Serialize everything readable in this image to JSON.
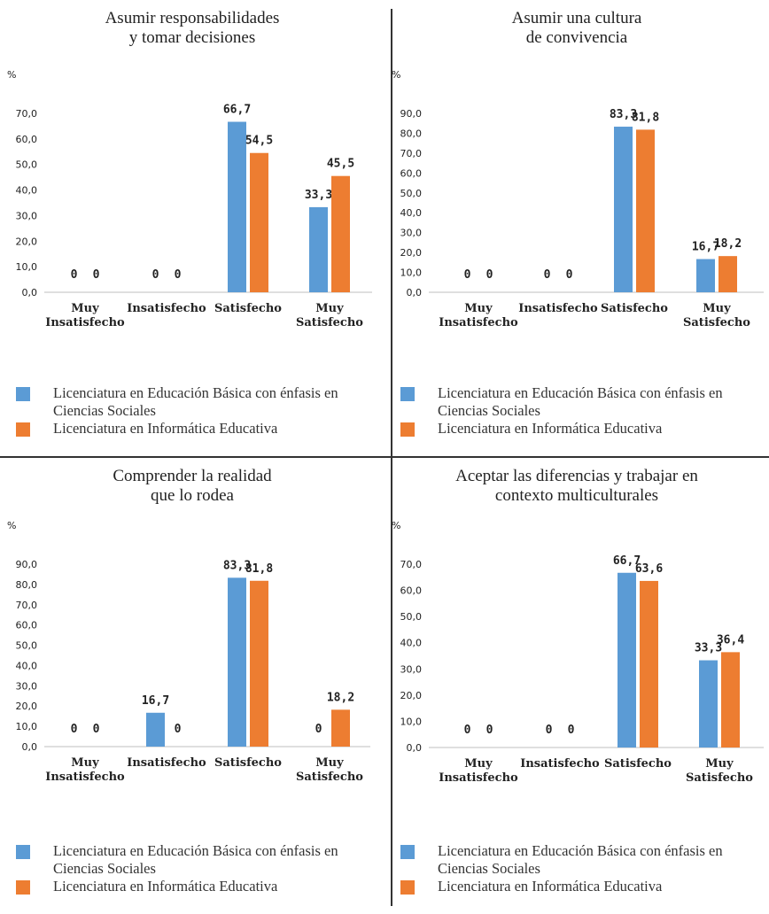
{
  "colors": {
    "series1": "#5b9bd5",
    "series2": "#ed7d31"
  },
  "legend": {
    "series1": "Licenciatura en Educación Básica con énfasis en Ciencias Sociales",
    "series2": "Licenciatura en Informática Educativa"
  },
  "chart_data": [
    {
      "type": "bar",
      "title": [
        "Asumir responsabilidades",
        "y tomar decisiones"
      ],
      "ylabel": "%",
      "categories": [
        [
          "Muy",
          "Insatisfecho"
        ],
        [
          "Insatisfecho"
        ],
        [
          "Satisfecho"
        ],
        [
          "Muy",
          "Satisfecho"
        ]
      ],
      "ylim": [
        0,
        70
      ],
      "yticks": [
        "0,0",
        "10,0",
        "20,0",
        "30,0",
        "40,0",
        "50,0",
        "60,0",
        "70,0"
      ],
      "series": [
        {
          "name": "Licenciatura en Educación Básica con énfasis en Ciencias Sociales",
          "values": [
            0,
            0,
            66.7,
            33.3
          ],
          "labels": [
            "0",
            "0",
            "66,7",
            "33,3"
          ]
        },
        {
          "name": "Licenciatura en Informática Educativa",
          "values": [
            0,
            0,
            54.5,
            45.5
          ],
          "labels": [
            "0",
            "0",
            "54,5",
            "45,5"
          ]
        }
      ],
      "legend_position": "bottom",
      "grid": false
    },
    {
      "type": "bar",
      "title": [
        "Asumir una cultura",
        "de convivencia"
      ],
      "ylabel": "%",
      "categories": [
        [
          "Muy",
          "Insatisfecho"
        ],
        [
          "Insatisfecho"
        ],
        [
          "Satisfecho"
        ],
        [
          "Muy",
          "Satisfecho"
        ]
      ],
      "ylim": [
        0,
        90
      ],
      "yticks": [
        "0,0",
        "10,0",
        "20,0",
        "30,0",
        "40,0",
        "50,0",
        "60,0",
        "70,0",
        "80,0",
        "90,0"
      ],
      "series": [
        {
          "name": "Licenciatura en Educación Básica con énfasis en Ciencias Sociales",
          "values": [
            0,
            0,
            83.3,
            16.7
          ],
          "labels": [
            "0",
            "0",
            "83,3",
            "16,7"
          ]
        },
        {
          "name": "Licenciatura en Informática Educativa",
          "values": [
            0,
            0,
            81.8,
            18.2
          ],
          "labels": [
            "0",
            "0",
            "81,8",
            "18,2"
          ]
        }
      ],
      "legend_position": "bottom",
      "grid": false
    },
    {
      "type": "bar",
      "title": [
        "Comprender la realidad",
        "que lo rodea"
      ],
      "ylabel": "%",
      "categories": [
        [
          "Muy",
          "Insatisfecho"
        ],
        [
          "Insatisfecho"
        ],
        [
          "Satisfecho"
        ],
        [
          "Muy",
          "Satisfecho"
        ]
      ],
      "ylim": [
        0,
        90
      ],
      "yticks": [
        "0,0",
        "10,0",
        "20,0",
        "30,0",
        "40,0",
        "50,0",
        "60,0",
        "70,0",
        "80,0",
        "90,0"
      ],
      "series": [
        {
          "name": "Licenciatura en Educación Básica con énfasis en Ciencias Sociales",
          "values": [
            0,
            16.7,
            83.3,
            0
          ],
          "labels": [
            "0",
            "16,7",
            "83,3",
            "0"
          ]
        },
        {
          "name": "Licenciatura en Informática Educativa",
          "values": [
            0,
            0,
            81.8,
            18.2
          ],
          "labels": [
            "0",
            "0",
            "81,8",
            "18,2"
          ]
        }
      ],
      "legend_position": "bottom",
      "grid": false
    },
    {
      "type": "bar",
      "title": [
        "Aceptar las diferencias y trabajar en",
        "contexto multiculturales"
      ],
      "ylabel": "%",
      "categories": [
        [
          "Muy",
          "Insatisfecho"
        ],
        [
          "Insatisfecho"
        ],
        [
          "Satisfecho"
        ],
        [
          "Muy",
          "Satisfecho"
        ]
      ],
      "ylim": [
        0,
        70
      ],
      "yticks": [
        "0,0",
        "10,0",
        "20,0",
        "30,0",
        "40,0",
        "50,0",
        "60,0",
        "70,0"
      ],
      "series": [
        {
          "name": "Licenciatura en Educación Básica con énfasis en Ciencias Sociales",
          "values": [
            0,
            0,
            66.7,
            33.3
          ],
          "labels": [
            "0",
            "0",
            "66,7",
            "33,3"
          ]
        },
        {
          "name": "Licenciatura en Informática Educativa",
          "values": [
            0,
            0,
            63.6,
            36.4
          ],
          "labels": [
            "0",
            "0",
            "63,6",
            "36,4"
          ]
        }
      ],
      "legend_position": "bottom",
      "grid": false
    }
  ]
}
